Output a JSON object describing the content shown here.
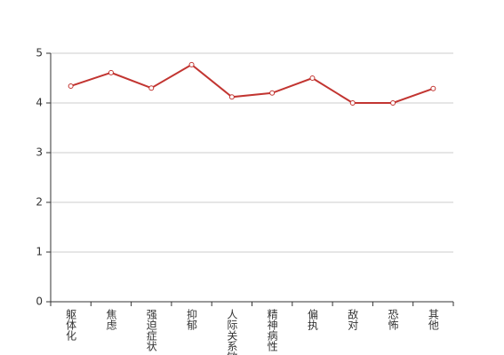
{
  "chart_data": {
    "type": "line",
    "categories": [
      "躯体化",
      "焦虑",
      "强迫症状",
      "抑郁",
      "人际关系敏感",
      "精神病性",
      "偏执",
      "敌对",
      "恐怖",
      "其他"
    ],
    "values": [
      4.34,
      4.61,
      4.3,
      4.77,
      4.12,
      4.2,
      4.5,
      4.0,
      4.0,
      4.29
    ],
    "color": "#c23531",
    "ylim": [
      0,
      5
    ],
    "yticks": [
      0,
      1,
      2,
      3,
      4,
      5
    ],
    "grid": true
  }
}
